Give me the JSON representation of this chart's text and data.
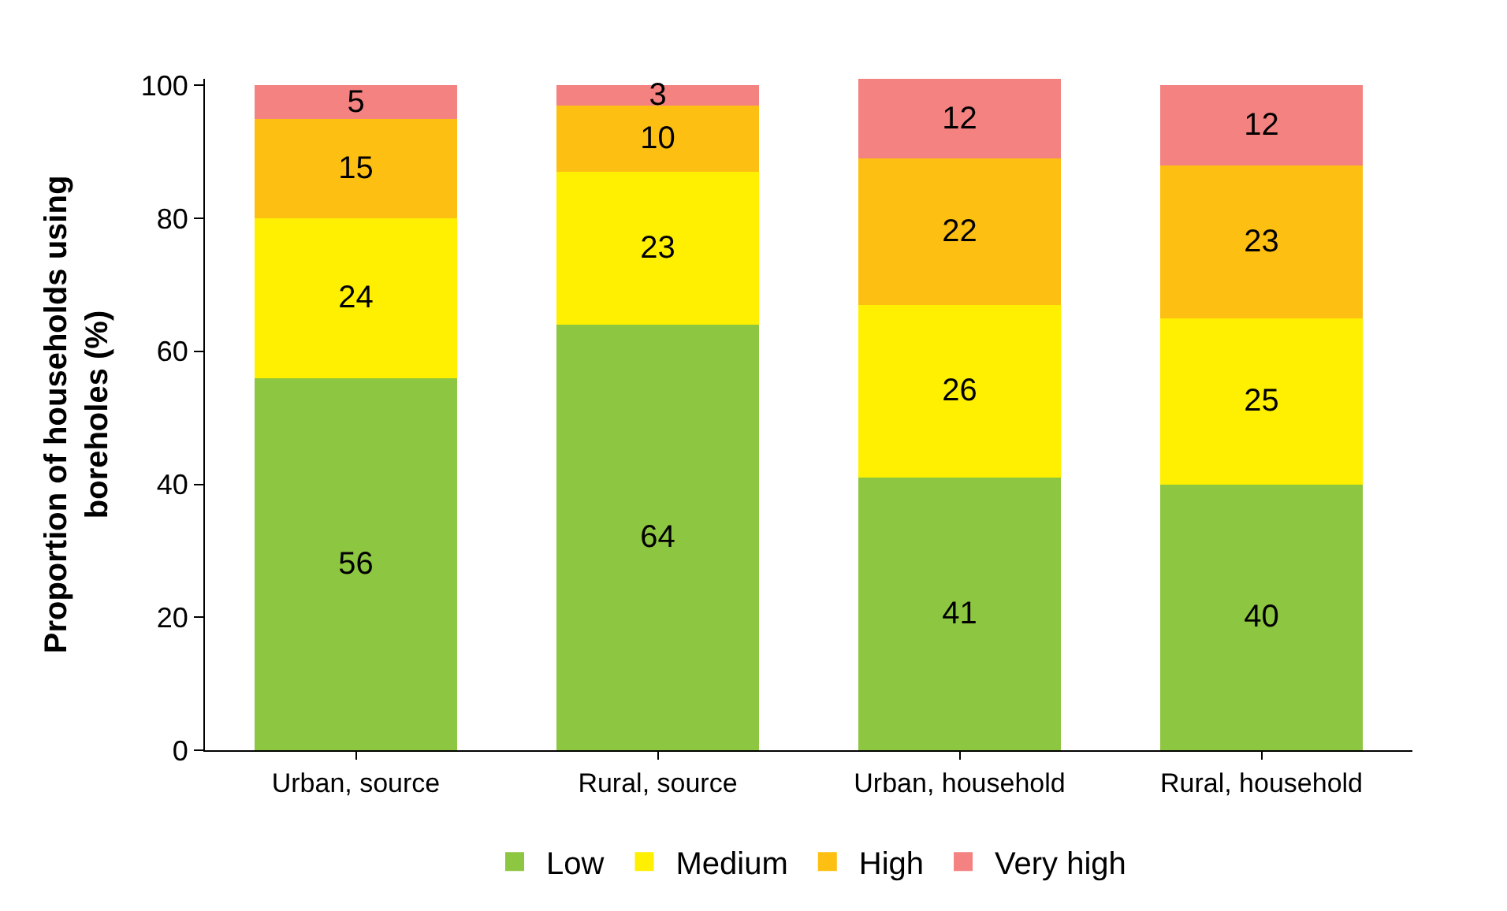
{
  "chart_data": {
    "type": "bar",
    "stacked": true,
    "ylabel": "Proportion of households using boreholes (%)",
    "categories": [
      "Urban, source",
      "Rural, source",
      "Urban, household",
      "Rural, household"
    ],
    "series": [
      {
        "name": "Low",
        "color": "#8dc641",
        "values": [
          56,
          64,
          41,
          40
        ]
      },
      {
        "name": "Medium",
        "color": "#ffef00",
        "values": [
          24,
          23,
          26,
          25
        ]
      },
      {
        "name": "High",
        "color": "#fdbf12",
        "values": [
          15,
          10,
          22,
          23
        ]
      },
      {
        "name": "Very high",
        "color": "#f48281",
        "values": [
          5,
          3,
          12,
          12
        ]
      }
    ],
    "ylim": [
      0,
      101
    ],
    "yticks": [
      0,
      20,
      40,
      60,
      80,
      100
    ],
    "data_labels": true,
    "legend": "bottom"
  }
}
